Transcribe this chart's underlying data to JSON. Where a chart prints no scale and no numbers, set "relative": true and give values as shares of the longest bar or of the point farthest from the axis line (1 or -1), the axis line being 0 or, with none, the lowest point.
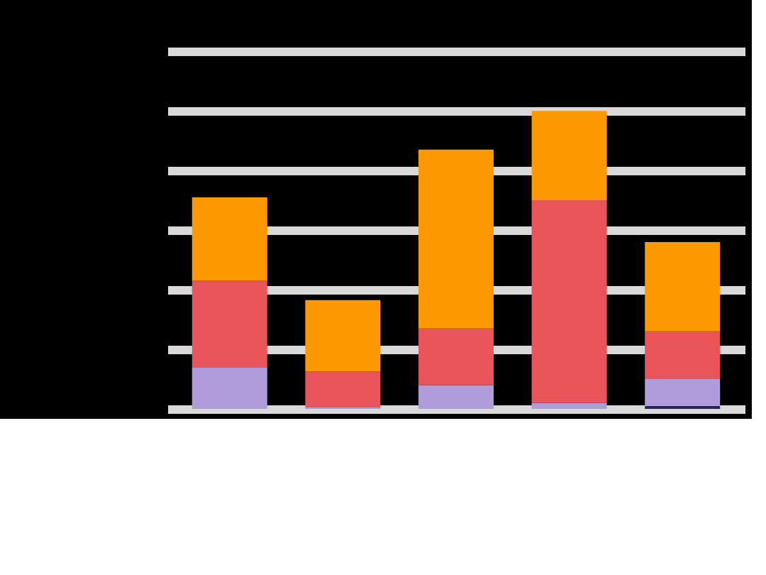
{
  "chart_data": {
    "type": "bar",
    "stacked": true,
    "relative": true,
    "grid": "y",
    "legend": false,
    "categories": [
      null,
      null,
      null,
      null,
      null
    ],
    "series": [
      {
        "color": "#1f2a5a",
        "values": [
          0,
          0,
          0,
          0,
          0.01
        ]
      },
      {
        "color": "#b09ada",
        "values": [
          0.14,
          0.005,
          0.08,
          0.02,
          0.09
        ]
      },
      {
        "color": "#e8545a",
        "values": [
          0.29,
          0.12,
          0.19,
          0.68,
          0.16
        ]
      },
      {
        "color": "#ff9900",
        "values": [
          0.28,
          0.24,
          0.6,
          0.3,
          0.3
        ]
      }
    ]
  }
}
